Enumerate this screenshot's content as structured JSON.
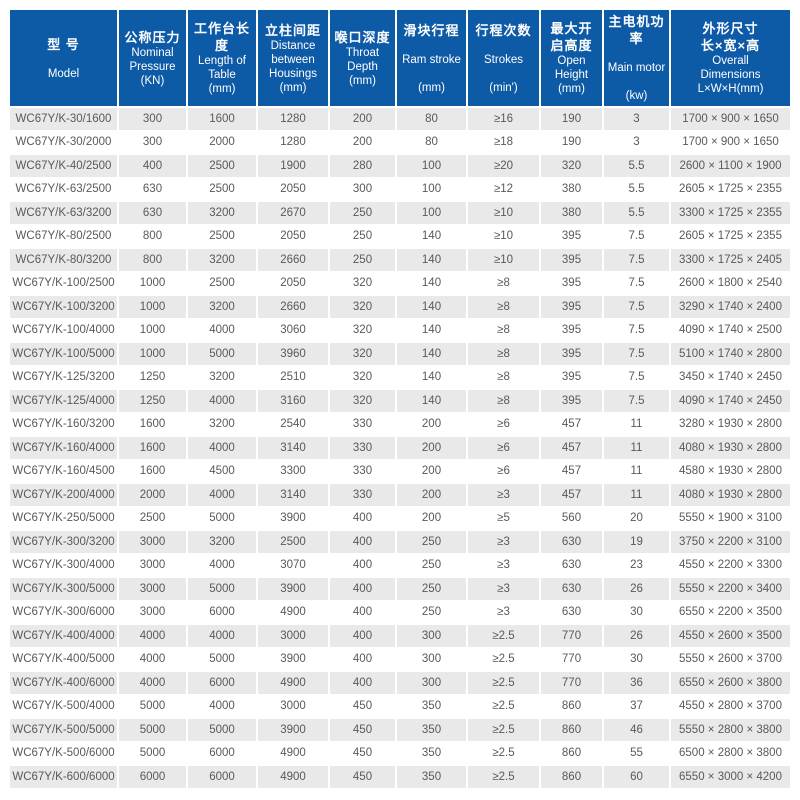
{
  "colors": {
    "header_bg": "#0d5aa7",
    "header_text": "#ffffff",
    "stripe_bg": "#e9e9e9",
    "body_text": "#58595b"
  },
  "table": {
    "columns": [
      {
        "id": "model",
        "lines": [
          "型 号",
          "",
          "Model"
        ]
      },
      {
        "id": "pressure",
        "lines": [
          "公称压力",
          "Nominal",
          "Pressure",
          "(KN)"
        ]
      },
      {
        "id": "table-length",
        "lines": [
          "工作台长度",
          "Length of",
          "Table",
          "(mm)"
        ]
      },
      {
        "id": "housings",
        "lines": [
          "立柱间距",
          "Distance",
          "between",
          "Housings",
          "(mm)"
        ]
      },
      {
        "id": "throat-depth",
        "lines": [
          "喉口深度",
          "Throat",
          "Depth",
          "(mm)"
        ]
      },
      {
        "id": "ram-stroke",
        "lines": [
          "滑块行程",
          "",
          "Ram stroke",
          "",
          "(mm)"
        ]
      },
      {
        "id": "strokes",
        "lines": [
          "行程次数",
          "",
          "Strokes",
          "",
          "(min')"
        ]
      },
      {
        "id": "open-height",
        "lines": [
          "最大开",
          "启高度",
          "Open",
          "Height",
          "(mm)"
        ]
      },
      {
        "id": "main-motor",
        "lines": [
          "主电机功率",
          "",
          "Main motor",
          "",
          "(kw)"
        ]
      },
      {
        "id": "dimensions",
        "lines": [
          "外形尺寸",
          "长×宽×高",
          "Overall",
          "Dimensions",
          "L×W×H(mm)"
        ]
      }
    ],
    "rows": [
      [
        "WC67Y/K-30/1600",
        "300",
        "1600",
        "1280",
        "200",
        "80",
        "≥16",
        "190",
        "3",
        "1700 × 900 × 1650"
      ],
      [
        "WC67Y/K-30/2000",
        "300",
        "2000",
        "1280",
        "200",
        "80",
        "≥18",
        "190",
        "3",
        "1700 × 900 × 1650"
      ],
      [
        "WC67Y/K-40/2500",
        "400",
        "2500",
        "1900",
        "280",
        "100",
        "≥20",
        "320",
        "5.5",
        "2600 × 1100 × 1900"
      ],
      [
        "WC67Y/K-63/2500",
        "630",
        "2500",
        "2050",
        "300",
        "100",
        "≥12",
        "380",
        "5.5",
        "2605 × 1725 × 2355"
      ],
      [
        "WC67Y/K-63/3200",
        "630",
        "3200",
        "2670",
        "250",
        "100",
        "≥10",
        "380",
        "5.5",
        "3300 × 1725 × 2355"
      ],
      [
        "WC67Y/K-80/2500",
        "800",
        "2500",
        "2050",
        "250",
        "140",
        "≥10",
        "395",
        "7.5",
        "2605 × 1725 × 2355"
      ],
      [
        "WC67Y/K-80/3200",
        "800",
        "3200",
        "2660",
        "250",
        "140",
        "≥10",
        "395",
        "7.5",
        "3300 × 1725 × 2405"
      ],
      [
        "WC67Y/K-100/2500",
        "1000",
        "2500",
        "2050",
        "320",
        "140",
        "≥8",
        "395",
        "7.5",
        "2600 × 1800 × 2540"
      ],
      [
        "WC67Y/K-100/3200",
        "1000",
        "3200",
        "2660",
        "320",
        "140",
        "≥8",
        "395",
        "7.5",
        "3290 × 1740 × 2400"
      ],
      [
        "WC67Y/K-100/4000",
        "1000",
        "4000",
        "3060",
        "320",
        "140",
        "≥8",
        "395",
        "7.5",
        "4090 × 1740 × 2500"
      ],
      [
        "WC67Y/K-100/5000",
        "1000",
        "5000",
        "3960",
        "320",
        "140",
        "≥8",
        "395",
        "7.5",
        "5100 × 1740 × 2800"
      ],
      [
        "WC67Y/K-125/3200",
        "1250",
        "3200",
        "2510",
        "320",
        "140",
        "≥8",
        "395",
        "7.5",
        "3450 × 1740 × 2450"
      ],
      [
        "WC67Y/K-125/4000",
        "1250",
        "4000",
        "3160",
        "320",
        "140",
        "≥8",
        "395",
        "7.5",
        "4090 × 1740 × 2450"
      ],
      [
        "WC67Y/K-160/3200",
        "1600",
        "3200",
        "2540",
        "330",
        "200",
        "≥6",
        "457",
        "11",
        "3280 × 1930 × 2800"
      ],
      [
        "WC67Y/K-160/4000",
        "1600",
        "4000",
        "3140",
        "330",
        "200",
        "≥6",
        "457",
        "11",
        "4080 × 1930 × 2800"
      ],
      [
        "WC67Y/K-160/4500",
        "1600",
        "4500",
        "3300",
        "330",
        "200",
        "≥6",
        "457",
        "11",
        "4580 × 1930 × 2800"
      ],
      [
        "WC67Y/K-200/4000",
        "2000",
        "4000",
        "3140",
        "330",
        "200",
        "≥3",
        "457",
        "11",
        "4080 × 1930 × 2800"
      ],
      [
        "WC67Y/K-250/5000",
        "2500",
        "5000",
        "3900",
        "400",
        "200",
        "≥5",
        "560",
        "20",
        "5550 × 1900 × 3100"
      ],
      [
        "WC67Y/K-300/3200",
        "3000",
        "3200",
        "2500",
        "400",
        "250",
        "≥3",
        "630",
        "19",
        "3750 × 2200 × 3100"
      ],
      [
        "WC67Y/K-300/4000",
        "3000",
        "4000",
        "3070",
        "400",
        "250",
        "≥3",
        "630",
        "23",
        "4550 × 2200 × 3300"
      ],
      [
        "WC67Y/K-300/5000",
        "3000",
        "5000",
        "3900",
        "400",
        "250",
        "≥3",
        "630",
        "26",
        "5550 × 2200 × 3400"
      ],
      [
        "WC67Y/K-300/6000",
        "3000",
        "6000",
        "4900",
        "400",
        "250",
        "≥3",
        "630",
        "30",
        "6550 × 2200 × 3500"
      ],
      [
        "WC67Y/K-400/4000",
        "4000",
        "4000",
        "3000",
        "400",
        "300",
        "≥2.5",
        "770",
        "26",
        "4550 × 2600 × 3500"
      ],
      [
        "WC67Y/K-400/5000",
        "4000",
        "5000",
        "3900",
        "400",
        "300",
        "≥2.5",
        "770",
        "30",
        "5550 × 2600 × 3700"
      ],
      [
        "WC67Y/K-400/6000",
        "4000",
        "6000",
        "4900",
        "400",
        "300",
        "≥2.5",
        "770",
        "36",
        "6550 × 2600 × 3800"
      ],
      [
        "WC67Y/K-500/4000",
        "5000",
        "4000",
        "3000",
        "450",
        "350",
        "≥2.5",
        "860",
        "37",
        "4550 × 2800 × 3700"
      ],
      [
        "WC67Y/K-500/5000",
        "5000",
        "5000",
        "3900",
        "450",
        "350",
        "≥2.5",
        "860",
        "46",
        "5550 × 2800 × 3800"
      ],
      [
        "WC67Y/K-500/6000",
        "5000",
        "6000",
        "4900",
        "450",
        "350",
        "≥2.5",
        "860",
        "55",
        "6500 × 2800 × 3800"
      ],
      [
        "WC67Y/K-600/6000",
        "6000",
        "6000",
        "4900",
        "450",
        "350",
        "≥2.5",
        "860",
        "60",
        "6550 × 3000 × 4200"
      ]
    ]
  }
}
